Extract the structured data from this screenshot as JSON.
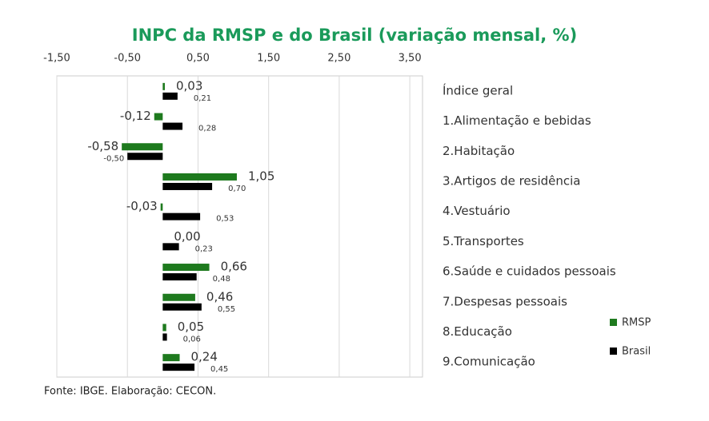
{
  "chart_data": {
    "type": "hbar",
    "title": "INPC da RMSP e do Brasil (variação mensal, %)",
    "source": "Fonte: IBGE. Elaboração: CECON.",
    "categories": [
      "Índice geral",
      "1.Alimentação e bebidas",
      "2.Habitação",
      "3.Artigos de residência",
      "4.Vestuário",
      "5.Transportes",
      "6.Saúde e cuidados pessoais",
      "7.Despesas pessoais",
      "8.Educação",
      "9.Comunicação"
    ],
    "series": [
      {
        "name": "RMSP",
        "color": "#1e7a1e",
        "values": [
          0.03,
          -0.12,
          -0.58,
          1.05,
          -0.03,
          0.0,
          0.66,
          0.46,
          0.05,
          0.24
        ],
        "value_labels": [
          "0,03",
          "-0,12",
          "-0,58",
          "1,05",
          "-0,03",
          "0,00",
          "0,66",
          "0,46",
          "0,05",
          "0,24"
        ]
      },
      {
        "name": "Brasil",
        "color": "#000000",
        "values": [
          0.21,
          0.28,
          -0.5,
          0.7,
          0.53,
          0.23,
          0.48,
          0.55,
          0.06,
          0.45
        ],
        "value_labels": [
          "0,21",
          "0,28",
          "-0,50",
          "0,70",
          "0,53",
          "0,23",
          "0,48",
          "0,55",
          "0,06",
          "0,45"
        ]
      }
    ],
    "xlim": [
      -1.5,
      3.68
    ],
    "xticks": [
      {
        "value": -1.5,
        "label": "-1,50"
      },
      {
        "value": -0.5,
        "label": "-0,50"
      },
      {
        "value": 0.5,
        "label": "0,50"
      },
      {
        "value": 1.5,
        "label": "1,50"
      },
      {
        "value": 2.5,
        "label": "2,50"
      },
      {
        "value": 3.5,
        "label": "3,50"
      }
    ],
    "grid": true,
    "legend": "lower-right"
  }
}
